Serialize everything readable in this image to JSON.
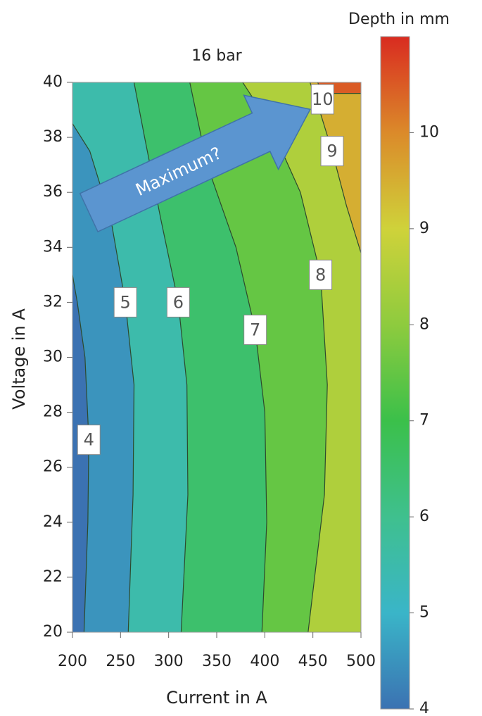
{
  "chart_data": {
    "type": "contour",
    "title": "16 bar",
    "xlabel": "Current in A",
    "ylabel": "Voltage in A",
    "colorbar_label": "Depth in mm",
    "annotation": "Maximum?",
    "xlim": [
      200,
      500
    ],
    "xticks": [
      200,
      250,
      300,
      350,
      400,
      450,
      500
    ],
    "ylim": [
      20,
      40
    ],
    "yticks": [
      20,
      22,
      24,
      26,
      28,
      30,
      32,
      34,
      36,
      38,
      40
    ],
    "clim": [
      4,
      11
    ],
    "cticks": [
      4,
      5,
      6,
      7,
      8,
      9,
      10
    ],
    "colorscale": [
      [
        4,
        "#3b72b2"
      ],
      [
        5,
        "#3ab5c8"
      ],
      [
        6,
        "#3fc08e"
      ],
      [
        7,
        "#3bc04a"
      ],
      [
        8,
        "#8ecb3e"
      ],
      [
        9,
        "#cfd23a"
      ],
      [
        10,
        "#db8a2a"
      ],
      [
        11,
        "#d92b20"
      ]
    ],
    "contours": [
      {
        "level": 4,
        "x": [
          212,
          216,
          217,
          213,
          205,
          200
        ],
        "y": [
          20,
          24,
          27,
          30,
          32,
          33
        ]
      },
      {
        "level": 5,
        "x": [
          258,
          263,
          264,
          255,
          240,
          218,
          200
        ],
        "y": [
          20,
          25,
          29,
          32,
          35,
          37.5,
          38.5
        ]
      },
      {
        "level": 6,
        "x": [
          313,
          320,
          319,
          310,
          292,
          275,
          264
        ],
        "y": [
          20,
          25,
          29,
          32,
          35,
          38,
          40
        ]
      },
      {
        "level": 7,
        "x": [
          397,
          402,
          400,
          390,
          370,
          340,
          322
        ],
        "y": [
          20,
          24,
          28,
          31,
          34,
          37,
          40
        ]
      },
      {
        "level": 8,
        "x": [
          445,
          462,
          465,
          458,
          437,
          405,
          377
        ],
        "y": [
          20,
          25,
          29,
          33,
          36,
          38.5,
          40
        ]
      },
      {
        "level": 9,
        "x": [
          500,
          485,
          470,
          455,
          447
        ],
        "y": [
          33.8,
          35.5,
          37.5,
          39.2,
          40
        ]
      },
      {
        "level": 10,
        "x": [
          500,
          460,
          455
        ],
        "y": [
          39.6,
          39.6,
          40
        ]
      }
    ]
  }
}
